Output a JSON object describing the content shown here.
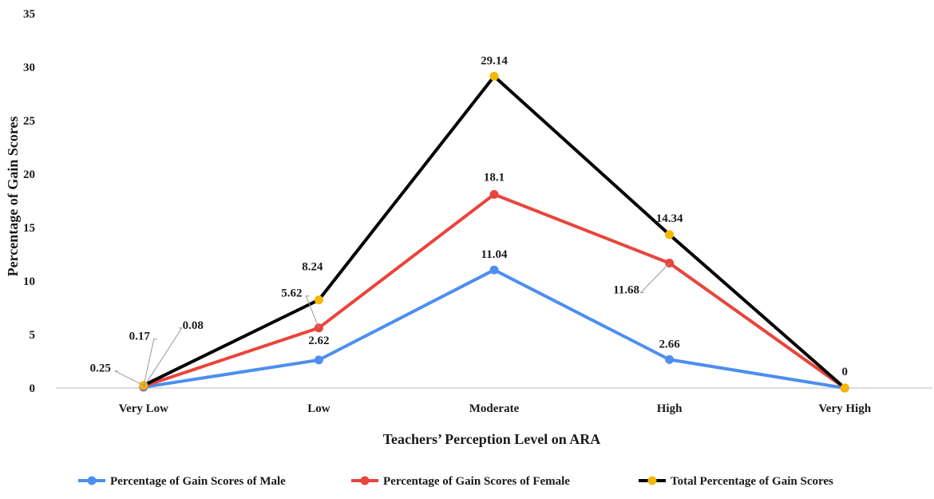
{
  "chart_data": {
    "type": "line",
    "xlabel": "Teachers’ Perception Level on ARA",
    "ylabel": "Percentage of Gain Scores",
    "categories": [
      "Very Low",
      "Low",
      "Moderate",
      "High",
      "Very High"
    ],
    "ylim": [
      0,
      35
    ],
    "yticks": [
      "0",
      "5",
      "10",
      "15",
      "20",
      "25",
      "30",
      "35"
    ],
    "grid": false,
    "legend_position": "bottom",
    "series": [
      {
        "name": "Percentage of Gain Scores of Male",
        "color": "#4d8ef0",
        "marker_color": "#4d8ef0",
        "values": [
          0.08,
          2.62,
          11.04,
          2.66,
          0
        ],
        "labels": [
          "0.08",
          "2.62",
          "11.04",
          "2.66",
          ""
        ]
      },
      {
        "name": "Percentage of Gain Scores of Female",
        "color": "#e8453c",
        "marker_color": "#e8453c",
        "values": [
          0.17,
          5.62,
          18.1,
          11.68,
          0
        ],
        "labels": [
          "0.17",
          "5.62",
          "18.1",
          "11.68",
          ""
        ]
      },
      {
        "name": "Total Percentage of Gain Scores",
        "color": "#000000",
        "marker_color": "#f5b800",
        "values": [
          0.25,
          8.24,
          29.14,
          14.34,
          0
        ],
        "labels": [
          "0.25",
          "8.24",
          "29.14",
          "14.34",
          "0"
        ]
      }
    ]
  }
}
